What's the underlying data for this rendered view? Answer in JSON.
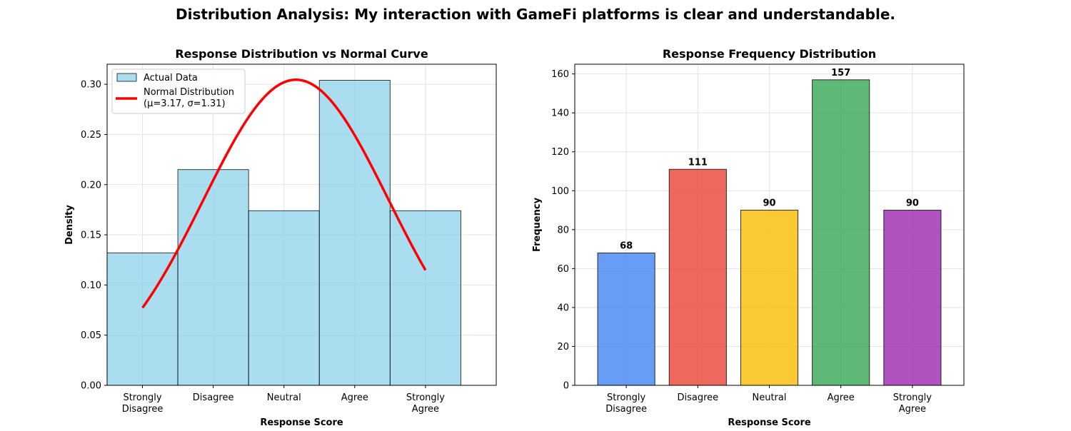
{
  "title": "Distribution Analysis: My interaction with GameFi platforms is clear and understandable.",
  "chart_data": [
    {
      "type": "bar",
      "title": "Response Distribution vs Normal Curve",
      "xlabel": "Response Score",
      "ylabel": "Density",
      "categories": [
        "Strongly\nDisagree",
        "Disagree",
        "Neutral",
        "Agree",
        "Strongly\nAgree"
      ],
      "values": [
        0.132,
        0.215,
        0.174,
        0.304,
        0.174
      ],
      "yticks": [
        "0.00",
        "0.05",
        "0.10",
        "0.15",
        "0.20",
        "0.25",
        "0.30"
      ],
      "ylim": [
        0,
        0.32
      ],
      "grid": true,
      "bar_color": "#87ceeb",
      "legend": {
        "position": "upper left",
        "entries": [
          "Actual Data",
          "Normal Distribution\n(μ=3.17, σ=1.31)"
        ]
      },
      "normal_curve": {
        "mu": 3.17,
        "sigma": 1.31,
        "x_range": [
          1,
          5
        ],
        "color": "#ff0000"
      }
    },
    {
      "type": "bar",
      "title": "Response Frequency Distribution",
      "xlabel": "Response Score",
      "ylabel": "Frequency",
      "categories": [
        "Strongly\nDisagree",
        "Disagree",
        "Neutral",
        "Agree",
        "Strongly\nAgree"
      ],
      "values": [
        68,
        111,
        90,
        157,
        90
      ],
      "labels": [
        "68",
        "111",
        "90",
        "157",
        "90"
      ],
      "yticks": [
        "0",
        "20",
        "40",
        "60",
        "80",
        "100",
        "120",
        "140",
        "160"
      ],
      "ylim": [
        0,
        165
      ],
      "grid": true,
      "colors": [
        "#4285f4",
        "#ea4335",
        "#fbbc04",
        "#34a853",
        "#9c27b0"
      ]
    }
  ]
}
